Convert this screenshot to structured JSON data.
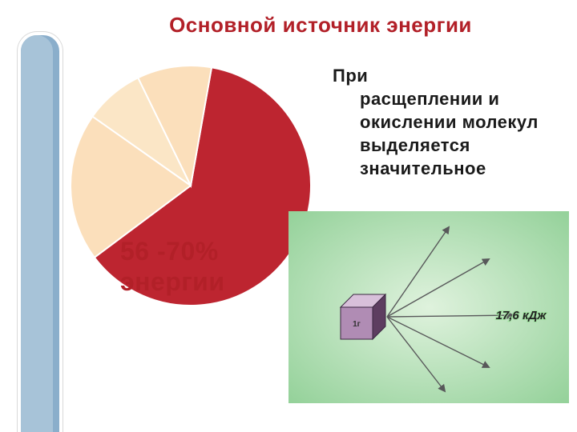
{
  "background_color": "#ffffff",
  "left_band": {
    "outer_color": "#8aaecb",
    "inner_color": "#a7c3d8",
    "border_color": "#ffffff"
  },
  "title": {
    "text": "Основной источник энергии",
    "color": "#b22028",
    "fontsize": 26,
    "fontweight": "bold"
  },
  "pie_chart": {
    "type": "pie",
    "diameter": 300,
    "stroke_color": "#ffffff",
    "stroke_width": 2,
    "slices": [
      {
        "value": 62,
        "color": "#bd2530",
        "start_angle_deg": -80
      },
      {
        "value": 20,
        "color": "#fbdfbb",
        "start_angle_deg": 143
      },
      {
        "value": 8,
        "color": "#fbe6c6",
        "start_angle_deg": 215
      },
      {
        "value": 10,
        "color": "#fbdfbb",
        "start_angle_deg": 244
      }
    ],
    "caption": {
      "line1": "56 -70%",
      "line2": "энергии",
      "color": "#b22028",
      "fontsize": 32,
      "fontweight": "bold"
    }
  },
  "right_text": {
    "line1": "При",
    "rest": "расщеплении и окислении молекул выделяется значительное",
    "color": "#1a1a1a",
    "fontsize": 22,
    "fontweight": "bold"
  },
  "cube_panel": {
    "type": "infographic",
    "background_gradient": {
      "inner": "#dff2dd",
      "outer": "#8fcf95"
    },
    "cube": {
      "face_front": "#b08cb4",
      "face_top": "#d8c0da",
      "face_side": "#5d3d60",
      "stroke": "#3a2640",
      "label": "1г",
      "label_color": "#333333",
      "label_fontsize": 10
    },
    "arrows": {
      "count": 5,
      "color": "#58585a",
      "width": 1.4
    },
    "value": {
      "text": "17,6 кДж",
      "color": "#222222",
      "outline": "#9fe09f",
      "fontsize": 15
    }
  }
}
